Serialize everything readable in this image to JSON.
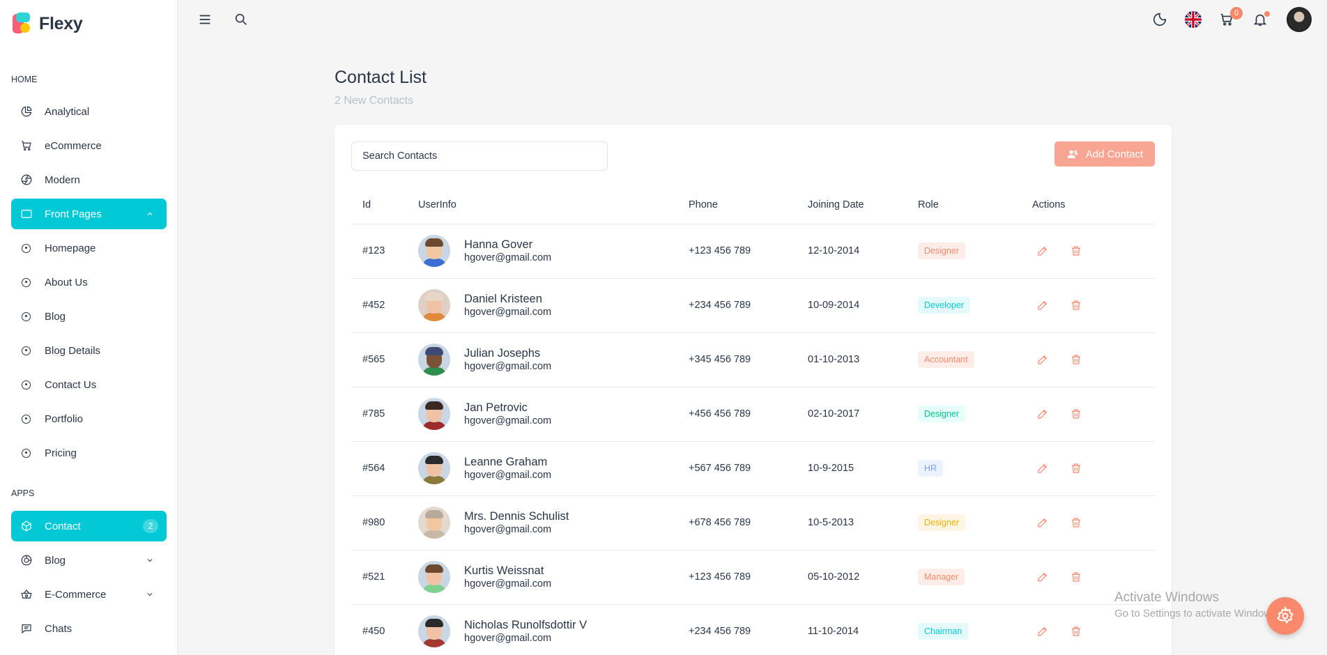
{
  "app": {
    "name": "Flexy"
  },
  "sidebar": {
    "home_caption": "HOME",
    "apps_caption": "APPS",
    "home_items": [
      {
        "label": "Analytical",
        "icon": "pie-chart-icon"
      },
      {
        "label": "eCommerce",
        "icon": "shopping-cart-icon"
      },
      {
        "label": "Modern",
        "icon": "aperture-icon"
      },
      {
        "label": "Front Pages",
        "icon": "layout-icon",
        "active": true
      }
    ],
    "front_pages": [
      "Homepage",
      "About Us",
      "Blog",
      "Blog Details",
      "Contact Us",
      "Portfolio",
      "Pricing"
    ],
    "apps_items": [
      {
        "label": "Contact",
        "icon": "box-icon",
        "active": true,
        "count": "2"
      },
      {
        "label": "Blog",
        "icon": "chart-donut-icon"
      },
      {
        "label": "E-Commerce",
        "icon": "basket-icon"
      },
      {
        "label": "Chats",
        "icon": "message-icon"
      }
    ]
  },
  "topbar": {
    "cart_count": "0"
  },
  "page": {
    "title": "Contact List",
    "subtitle": "2 New Contacts"
  },
  "search": {
    "placeholder": "Search Contacts"
  },
  "add_button": {
    "label": "Add Contact"
  },
  "table": {
    "headers": [
      "Id",
      "UserInfo",
      "Phone",
      "Joining Date",
      "Role",
      "Actions"
    ],
    "rows": [
      {
        "id": "#123",
        "name": "Hanna Gover",
        "email": "hgover@gmail.com",
        "phone": "+123 456 789",
        "date": "12-10-2014",
        "role": "Designer",
        "role_color": "#fa896b",
        "role_bg": "#fdede8"
      },
      {
        "id": "#452",
        "name": "Daniel Kristeen",
        "email": "hgover@gmail.com",
        "phone": "+234 456 789",
        "date": "10-09-2014",
        "role": "Developer",
        "role_color": "#03c9d7",
        "role_bg": "#e5fafb"
      },
      {
        "id": "#565",
        "name": "Julian Josephs",
        "email": "hgover@gmail.com",
        "phone": "+345 456 789",
        "date": "01-10-2013",
        "role": "Accountant",
        "role_color": "#fa896b",
        "role_bg": "#fdede8"
      },
      {
        "id": "#785",
        "name": "Jan Petrovic",
        "email": "hgover@gmail.com",
        "phone": "+456 456 789",
        "date": "02-10-2017",
        "role": "Designer",
        "role_color": "#00c292",
        "role_bg": "#e6fffa"
      },
      {
        "id": "#564",
        "name": "Leanne Graham",
        "email": "hgover@gmail.com",
        "phone": "+567 456 789",
        "date": "10-9-2015",
        "role": "HR",
        "role_color": "#7f9ee6",
        "role_bg": "#ecf2ff"
      },
      {
        "id": "#980",
        "name": "Mrs. Dennis Schulist",
        "email": "hgover@gmail.com",
        "phone": "+678 456 789",
        "date": "10-5-2013",
        "role": "Designer",
        "role_color": "#f0b400",
        "role_bg": "#fef5e5"
      },
      {
        "id": "#521",
        "name": "Kurtis Weissnat",
        "email": "hgover@gmail.com",
        "phone": "+123 456 789",
        "date": "05-10-2012",
        "role": "Manager",
        "role_color": "#fa896b",
        "role_bg": "#fdede8"
      },
      {
        "id": "#450",
        "name": "Nicholas Runolfsdottir V",
        "email": "hgover@gmail.com",
        "phone": "+234 456 789",
        "date": "11-10-2014",
        "role": "Chairman",
        "role_color": "#03c9d7",
        "role_bg": "#e5fafb"
      }
    ]
  },
  "watermark": {
    "line1": "Activate Windows",
    "line2": "Go to Settings to activate Windows."
  },
  "colors": {
    "primary": "#03c9d7",
    "accent": "#fa896b",
    "text": "#2a3547"
  }
}
